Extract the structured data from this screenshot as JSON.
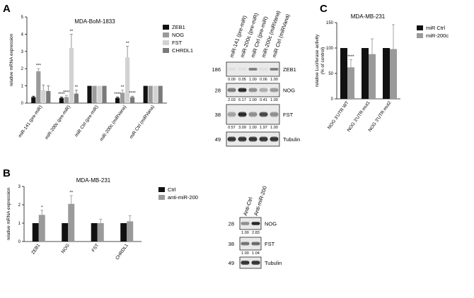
{
  "colors": {
    "black": "#111111",
    "dark_gray": "#7a7a7a",
    "light_gray": "#d2d2d2",
    "med_gray": "#9a9a9a"
  },
  "chart_data": [
    {
      "panel": "A",
      "type": "bar",
      "title": "MDA-BoM-1833",
      "ylabel": "relative mRNA expression",
      "ylim": [
        0,
        5
      ],
      "yticks": [
        "0",
        "1",
        "2",
        "3",
        "4",
        "5"
      ],
      "categories": [
        "miR-141 (pre-miR)",
        "miR-200c (pre-miR)",
        "miR Ctrl (pre-miR)",
        "miR-200c (miRVana)",
        "miR Ctrl (miRVana)"
      ],
      "legend_position": "right",
      "series": [
        {
          "name": "ZEB1",
          "color": "#111111",
          "values": [
            0.35,
            0.3,
            1.0,
            0.3,
            1.0
          ],
          "errors": [
            0.05,
            0.05,
            0,
            0.05,
            0
          ],
          "sig": [
            "",
            "****",
            "",
            "****",
            ""
          ]
        },
        {
          "name": "NOG",
          "color": "#9a9a9a",
          "values": [
            1.85,
            0.35,
            1.0,
            0.6,
            1.0
          ],
          "errors": [
            0.15,
            0.1,
            0,
            0.15,
            0
          ],
          "sig": [
            "***",
            "****",
            "",
            "**",
            ""
          ]
        },
        {
          "name": "FST",
          "color": "#d2d2d2",
          "values": [
            0.75,
            3.2,
            1.0,
            2.65,
            1.0
          ],
          "errors": [
            0.3,
            0.8,
            0,
            0.65,
            0
          ],
          "sig": [
            "",
            "**",
            "",
            "**",
            ""
          ]
        },
        {
          "name": "CHRDL1",
          "color": "#7a7a7a",
          "values": [
            0.7,
            0.55,
            1.0,
            0.35,
            1.0
          ],
          "errors": [
            0.3,
            0.2,
            0,
            0.05,
            0
          ],
          "sig": [
            "",
            "**",
            "",
            "****",
            ""
          ]
        }
      ]
    },
    {
      "panel": "B",
      "type": "bar",
      "title": "MDA-MB-231",
      "ylabel": "relative mRNA expression",
      "ylim": [
        0,
        3
      ],
      "yticks": [
        "0",
        "1",
        "2",
        "3"
      ],
      "categories": [
        "ZEB1",
        "NOG",
        "FST",
        "CHRDL1"
      ],
      "legend_position": "top-right",
      "series": [
        {
          "name": "Ctrl",
          "color": "#111111",
          "values": [
            1.0,
            1.0,
            1.0,
            1.0
          ],
          "errors": [
            0,
            0,
            0,
            0
          ],
          "sig": [
            "",
            "",
            "",
            ""
          ]
        },
        {
          "name": "anti-miR-200",
          "color": "#9a9a9a",
          "values": [
            1.45,
            2.05,
            1.0,
            1.1
          ],
          "errors": [
            0.25,
            0.45,
            0.22,
            0.3
          ],
          "sig": [
            "*",
            "**",
            "",
            ""
          ]
        }
      ]
    },
    {
      "panel": "C",
      "type": "bar",
      "title": "MDA-MB-231",
      "ylabel": "relative Luciferase activity (% of control)",
      "ylim": [
        0,
        150
      ],
      "yticks": [
        "0",
        "50",
        "100",
        "150"
      ],
      "categories": [
        "NOG 3'UTR WT",
        "NOG 3'UTR mut1",
        "NOG 3'UTR mut2"
      ],
      "legend_position": "top-right",
      "series": [
        {
          "name": "miR Ctrl",
          "color": "#111111",
          "values": [
            100,
            100,
            100
          ],
          "errors": [
            0,
            0,
            0
          ],
          "sig": [
            "",
            "",
            ""
          ]
        },
        {
          "name": "miR-200c",
          "color": "#9a9a9a",
          "values": [
            62,
            88,
            98
          ],
          "errors": [
            15,
            30,
            48
          ],
          "sig": [
            "****",
            "",
            ""
          ]
        }
      ]
    }
  ],
  "blot_a": {
    "lanes": [
      "miR-141 (pre-miR)",
      "miR-200c (pre-miR)",
      "miR Ctrl (pre-miR)",
      "miR-200c (miRVana)",
      "miR Ctrl (miRVana)"
    ],
    "rows": [
      {
        "protein": "ZEB1",
        "mw": "186",
        "quant": [
          "0.09",
          "0.05",
          "1.00",
          "0.06",
          "1.00"
        ]
      },
      {
        "protein": "NOG",
        "mw": "28",
        "quant": [
          "2.03",
          "6.17",
          "1.00",
          "0.41",
          "1.00"
        ]
      },
      {
        "protein": "FST",
        "mw": "38",
        "quant": [
          "0.57",
          "3.09",
          "1.00",
          "1.97",
          "1.00"
        ]
      },
      {
        "protein": "Tubulin",
        "mw": "49",
        "quant": []
      }
    ]
  },
  "blot_b": {
    "lanes": [
      "Anti-Ctrl",
      "Anti-miR-200"
    ],
    "rows": [
      {
        "protein": "NOG",
        "mw": "28",
        "quant": [
          "1.00",
          "2.83"
        ]
      },
      {
        "protein": "FST",
        "mw": "38",
        "quant": [
          "1.00",
          "1.04"
        ]
      },
      {
        "protein": "Tubulin",
        "mw": "49",
        "quant": []
      }
    ]
  }
}
